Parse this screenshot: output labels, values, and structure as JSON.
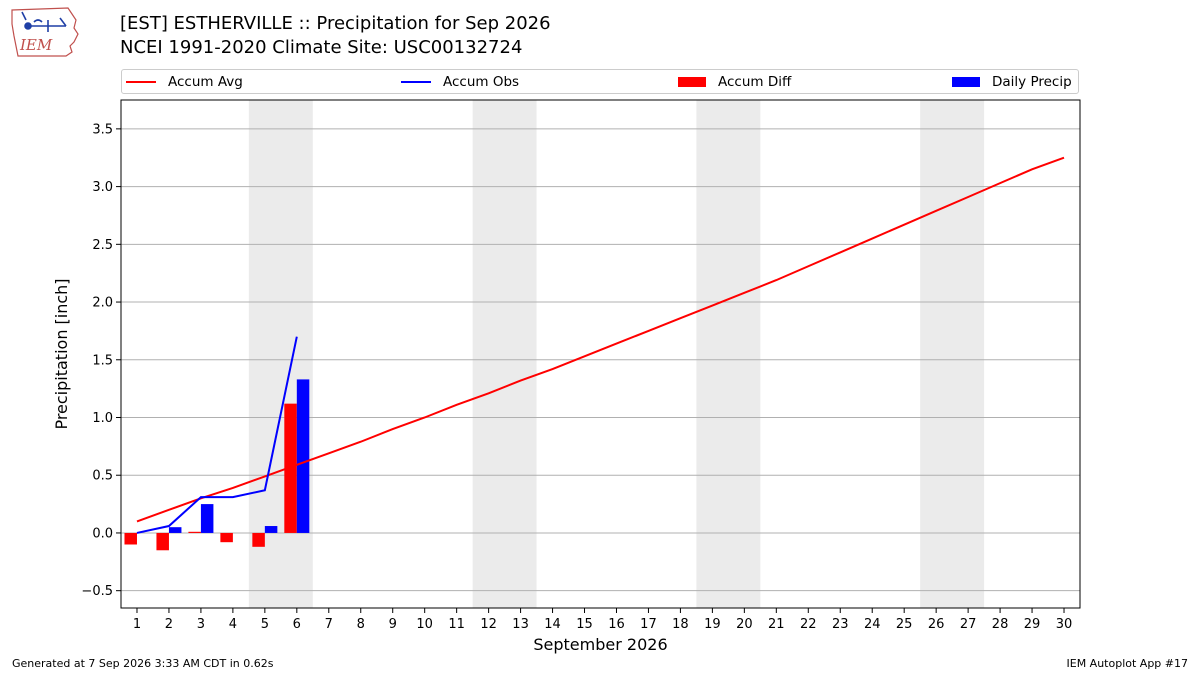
{
  "header": {
    "title_line1": "[EST] ESTHERVILLE :: Precipitation for Sep 2026",
    "title_line2": "NCEI 1991-2020 Climate Site: USC00132724",
    "logo_text": "IEM"
  },
  "footer": {
    "generated": "Generated at 7 Sep 2026 3:33 AM CDT in 0.62s",
    "app": "IEM Autoplot App #17"
  },
  "colors": {
    "avg": "#ff0000",
    "obs": "#0000ff",
    "diff": "#ff0000",
    "daily": "#0000ff",
    "weekend_band": "#ebebeb",
    "grid": "#b0b0b0"
  },
  "legend": [
    {
      "label": "Accum Avg",
      "kind": "line",
      "color": "#ff0000"
    },
    {
      "label": "Accum Obs",
      "kind": "line",
      "color": "#0000ff"
    },
    {
      "label": "Accum Diff",
      "kind": "box",
      "color": "#ff0000"
    },
    {
      "label": "Daily Precip",
      "kind": "box",
      "color": "#0000ff"
    }
  ],
  "chart_data": {
    "type": "bar",
    "xlabel": "September 2026",
    "ylabel": "Precipitation [inch]",
    "xlim": [
      0.5,
      30.5
    ],
    "ylim": [
      -0.65,
      3.75
    ],
    "yticks": [
      -0.5,
      0.0,
      0.5,
      1.0,
      1.5,
      2.0,
      2.5,
      3.0,
      3.5
    ],
    "ytick_labels": [
      "−0.5",
      "0.0",
      "0.5",
      "1.0",
      "1.5",
      "2.0",
      "2.5",
      "3.0",
      "3.5"
    ],
    "xticks": [
      1,
      2,
      3,
      4,
      5,
      6,
      7,
      8,
      9,
      10,
      11,
      12,
      13,
      14,
      15,
      16,
      17,
      18,
      19,
      20,
      21,
      22,
      23,
      24,
      25,
      26,
      27,
      28,
      29,
      30
    ],
    "grid": "horizontal",
    "weekend_bands": [
      [
        4.5,
        6.5
      ],
      [
        11.5,
        13.5
      ],
      [
        18.5,
        20.5
      ],
      [
        25.5,
        27.5
      ]
    ],
    "series": [
      {
        "name": "Accum Avg",
        "kind": "line",
        "x": [
          1,
          2,
          3,
          4,
          5,
          6,
          7,
          8,
          9,
          10,
          11,
          12,
          13,
          14,
          15,
          16,
          17,
          18,
          19,
          20,
          21,
          22,
          23,
          24,
          25,
          26,
          27,
          28,
          29,
          30
        ],
        "values": [
          0.1,
          0.2,
          0.3,
          0.39,
          0.49,
          0.59,
          0.69,
          0.79,
          0.9,
          1.0,
          1.11,
          1.21,
          1.32,
          1.42,
          1.53,
          1.64,
          1.75,
          1.86,
          1.97,
          2.08,
          2.19,
          2.31,
          2.43,
          2.55,
          2.67,
          2.79,
          2.91,
          3.03,
          3.15,
          3.25
        ]
      },
      {
        "name": "Accum Obs",
        "kind": "line",
        "x": [
          1,
          2,
          3,
          4,
          5,
          6
        ],
        "values": [
          0.0,
          0.06,
          0.31,
          0.31,
          0.37,
          1.7
        ]
      },
      {
        "name": "Accum Diff",
        "kind": "bar",
        "x": [
          1,
          2,
          3,
          4,
          5,
          6
        ],
        "values": [
          -0.1,
          -0.15,
          0.01,
          -0.08,
          -0.12,
          1.12
        ]
      },
      {
        "name": "Daily Precip",
        "kind": "bar",
        "x": [
          1,
          2,
          3,
          4,
          5,
          6
        ],
        "values": [
          0.0,
          0.05,
          0.25,
          0.0,
          0.06,
          1.33
        ]
      }
    ]
  }
}
